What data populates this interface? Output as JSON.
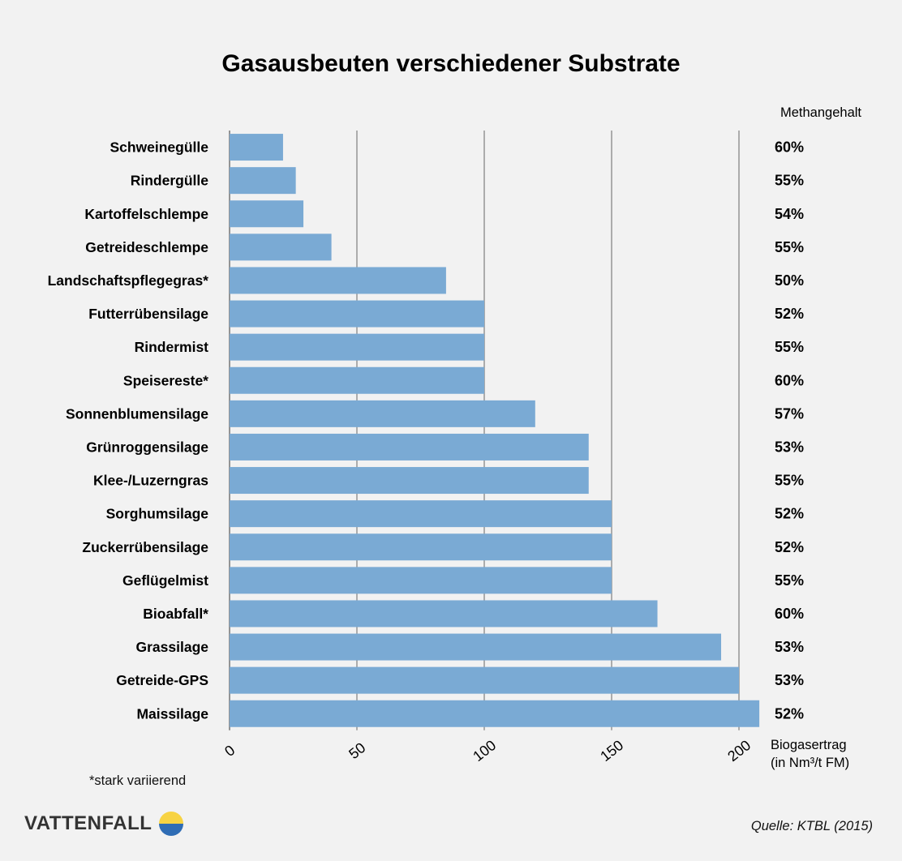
{
  "chart_data": {
    "type": "bar",
    "orientation": "horizontal",
    "title": "Gasausbeuten verschiedener Substrate",
    "categories": [
      "Schweinegülle",
      "Rindergülle",
      "Kartoffelschlempe",
      "Getreideschlempe",
      "Landschaftspflegegras*",
      "Futterrübensilage",
      "Rindermist",
      "Speisereste*",
      "Sonnenblumensilage",
      "Grünroggensilage",
      "Klee-/Luzerngras",
      "Sorghumsilage",
      "Zuckerrübensilage",
      "Geflügelmist",
      "Bioabfall*",
      "Grassilage",
      "Getreide-GPS",
      "Maissilage"
    ],
    "values": [
      21,
      26,
      29,
      40,
      85,
      100,
      100,
      100,
      120,
      141,
      141,
      150,
      150,
      150,
      168,
      193,
      200,
      208
    ],
    "methane_header": "Methangehalt",
    "methane_labels": [
      "60%",
      "55%",
      "54%",
      "55%",
      "50%",
      "52%",
      "55%",
      "60%",
      "57%",
      "53%",
      "55%",
      "52%",
      "52%",
      "55%",
      "60%",
      "53%",
      "53%",
      "52%"
    ],
    "xticks": [
      0,
      50,
      100,
      150,
      200
    ],
    "xlim": [
      0,
      210
    ],
    "xlabel_line1": "Biogasertrag",
    "xlabel_line2": "(in Nm³/t FM)",
    "bar_color": "#7aaad4",
    "grid": true
  },
  "footnote": "*stark variierend",
  "source": "Quelle: KTBL (2015)",
  "brand": {
    "name": "VATTENFALL",
    "logo_top_color": "#f7d343",
    "logo_bottom_color": "#2f6db5"
  }
}
